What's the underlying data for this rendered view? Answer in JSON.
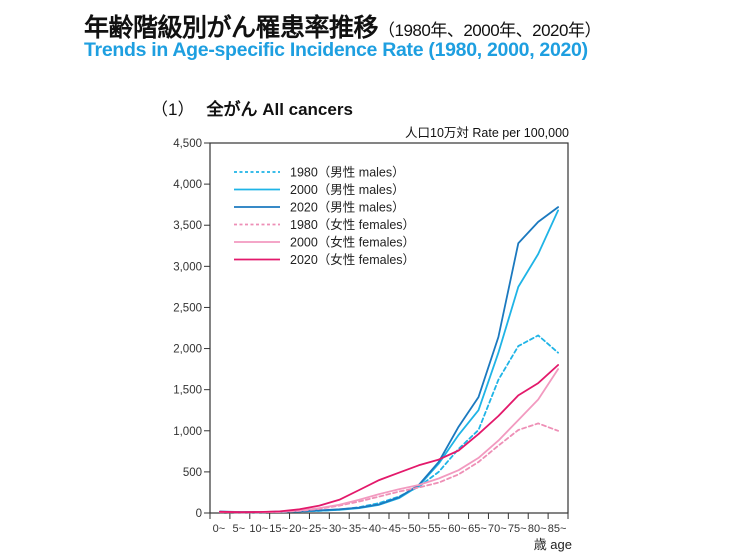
{
  "header": {
    "title_jp": "年齢階級別がん罹患率推移",
    "title_jp_years": "（1980年、2000年、2020年）",
    "title_en": "Trends in Age-specific Incidence Rate (1980, 2000, 2020)"
  },
  "panel": {
    "number": "（1）",
    "name": "全がん All cancers",
    "unit": "人口10万対  Rate per 100,000"
  },
  "chart_data": {
    "type": "line",
    "title": "全がん All cancers",
    "xlabel": "歳 age",
    "ylabel": "人口10万対 Rate per 100,000",
    "ylim": [
      0,
      4500
    ],
    "yticks": [
      0,
      500,
      1000,
      1500,
      2000,
      2500,
      3000,
      3500,
      4000,
      4500
    ],
    "ytick_labels": [
      "0",
      "500",
      "1,000",
      "1,500",
      "2,000",
      "2,500",
      "3,000",
      "3,500",
      "4,000",
      "4,500"
    ],
    "categories": [
      "0~",
      "5~",
      "10~",
      "15~",
      "20~",
      "25~",
      "30~",
      "35~",
      "40~",
      "45~",
      "50~",
      "55~",
      "60~",
      "65~",
      "70~",
      "75~",
      "80~",
      "85~"
    ],
    "grid": false,
    "legend_position": "top-left",
    "series": [
      {
        "name": "1980（男性 males）",
        "color": "#1fb4e6",
        "dash": true,
        "values": [
          12,
          8,
          8,
          12,
          18,
          25,
          40,
          70,
          120,
          200,
          320,
          500,
          780,
          1010,
          1620,
          2030,
          2160,
          1950
        ]
      },
      {
        "name": "2000（男性 males）",
        "color": "#1fb4e6",
        "dash": false,
        "values": [
          15,
          10,
          10,
          14,
          20,
          28,
          38,
          60,
          100,
          180,
          330,
          600,
          950,
          1250,
          1950,
          2750,
          3150,
          3680
        ]
      },
      {
        "name": "2020（男性 males）",
        "color": "#1b79bf",
        "dash": false,
        "values": [
          18,
          12,
          12,
          16,
          22,
          32,
          45,
          65,
          105,
          190,
          340,
          620,
          1050,
          1410,
          2140,
          3280,
          3540,
          3720
        ]
      },
      {
        "name": "1980（女性 females）",
        "color": "#ee8fb6",
        "dash": true,
        "values": [
          10,
          8,
          8,
          12,
          25,
          50,
          90,
          140,
          200,
          260,
          310,
          370,
          470,
          620,
          820,
          1010,
          1090,
          1000
        ]
      },
      {
        "name": "2000（女性 females）",
        "color": "#f29ac0",
        "dash": false,
        "values": [
          12,
          9,
          10,
          15,
          30,
          60,
          100,
          160,
          230,
          290,
          340,
          420,
          520,
          670,
          880,
          1130,
          1380,
          1750
        ]
      },
      {
        "name": "2020（女性 females）",
        "color": "#e3196b",
        "dash": false,
        "values": [
          15,
          10,
          12,
          20,
          45,
          90,
          160,
          280,
          400,
          490,
          580,
          650,
          760,
          960,
          1180,
          1430,
          1580,
          1800
        ]
      }
    ]
  }
}
